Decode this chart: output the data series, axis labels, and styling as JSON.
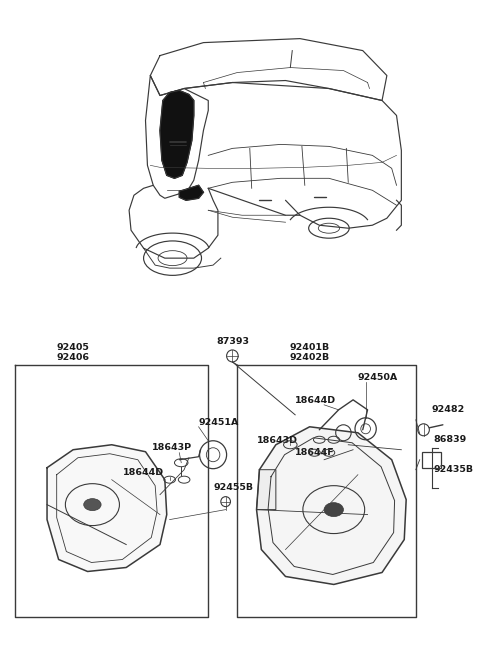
{
  "bg_color": "#ffffff",
  "fig_width": 4.8,
  "fig_height": 6.55,
  "dpi": 100,
  "line_color": "#3a3a3a",
  "text_color": "#1a1a1a",
  "label_fontsize": 6.8,
  "parts": {
    "top_labels_left": [
      "92405",
      "92406"
    ],
    "top_label_center": "87393",
    "top_labels_right": [
      "92401B",
      "92402B"
    ],
    "left_box_inner": [
      "92451A",
      "18643P",
      "18644D"
    ],
    "center_label": "92455B",
    "right_box_inner": [
      "92450A",
      "18644D",
      "18643D",
      "18644F"
    ],
    "right_outside": [
      "92482",
      "86839",
      "92435B"
    ]
  }
}
